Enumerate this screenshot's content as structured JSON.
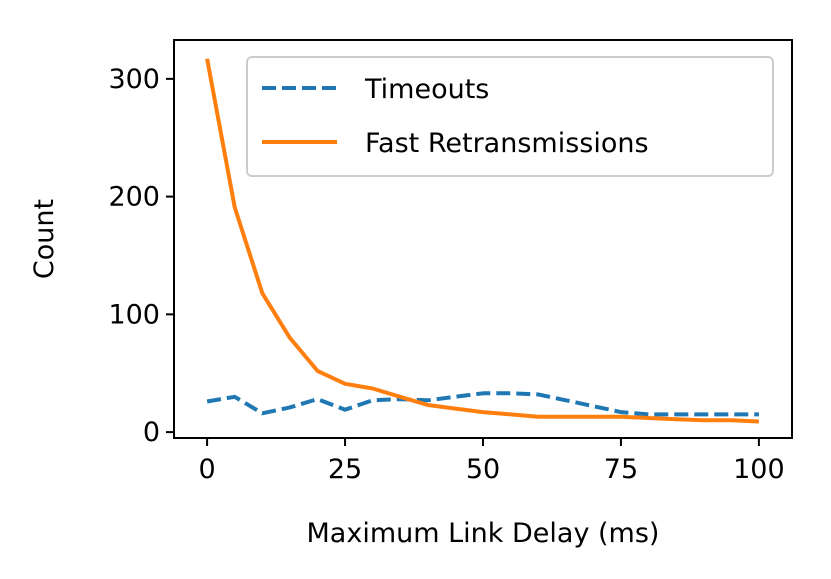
{
  "chart_data": {
    "type": "line",
    "xlabel": "Maximum Link Delay (ms)",
    "ylabel": "Count",
    "xlim": [
      -6,
      106
    ],
    "ylim": [
      -5,
      333
    ],
    "xticks": [
      0,
      25,
      50,
      75,
      100
    ],
    "xtick_labels": [
      "0",
      "25",
      "50",
      "75",
      "100"
    ],
    "yticks": [
      0,
      100,
      200,
      300
    ],
    "ytick_labels": [
      "0",
      "100",
      "200",
      "300"
    ],
    "grid": false,
    "legend_position": "top-right",
    "series": [
      {
        "name": "Timeouts",
        "color": "#1f77b4",
        "style": "dashed",
        "x": [
          0,
          5,
          10,
          15,
          20,
          25,
          30,
          35,
          40,
          45,
          50,
          55,
          60,
          65,
          70,
          75,
          80,
          85,
          90,
          95,
          100
        ],
        "y": [
          26,
          30,
          16,
          21,
          28,
          19,
          27,
          28,
          27,
          30,
          33,
          33,
          32,
          27,
          22,
          17,
          15,
          15,
          15,
          15,
          15
        ]
      },
      {
        "name": "Fast Retransmissions",
        "color": "#ff7f0e",
        "style": "solid",
        "x": [
          0,
          5,
          10,
          15,
          20,
          25,
          30,
          35,
          40,
          45,
          50,
          55,
          60,
          65,
          70,
          75,
          80,
          85,
          90,
          95,
          100
        ],
        "y": [
          317,
          191,
          118,
          80,
          52,
          41,
          37,
          30,
          23,
          20,
          17,
          15,
          13,
          13,
          13,
          13,
          12,
          11,
          10,
          10,
          9
        ]
      }
    ]
  }
}
